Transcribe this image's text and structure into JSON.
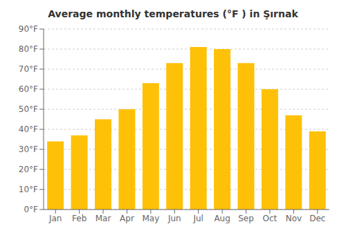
{
  "chart_data": {
    "type": "bar",
    "title": "Average monthly temperatures (°F ) in Şırnak",
    "categories": [
      "Jan",
      "Feb",
      "Mar",
      "Apr",
      "May",
      "Jun",
      "Jul",
      "Aug",
      "Sep",
      "Oct",
      "Nov",
      "Dec"
    ],
    "values": [
      34,
      37,
      45,
      50,
      63,
      73,
      81,
      80,
      73,
      60,
      47,
      39
    ],
    "color": "#FFC107",
    "ylim": [
      0,
      90
    ],
    "yticks": [
      {
        "value": 0,
        "label": "0°F"
      },
      {
        "value": 10,
        "label": "10°F"
      },
      {
        "value": 20,
        "label": "20°F"
      },
      {
        "value": 30,
        "label": "30°F"
      },
      {
        "value": 40,
        "label": "40°F"
      },
      {
        "value": 50,
        "label": "50°F"
      },
      {
        "value": 60,
        "label": "60°F"
      },
      {
        "value": 70,
        "label": "70°F"
      },
      {
        "value": 80,
        "label": "80°F"
      },
      {
        "value": 90,
        "label": "90°F"
      }
    ],
    "grid": true
  }
}
